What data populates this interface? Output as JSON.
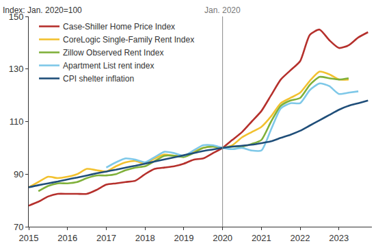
{
  "chart_data": {
    "type": "line",
    "y_label": "Index: Jan. 2020=100",
    "annotations": [
      {
        "text": "Jan. 2020",
        "x": 2020
      }
    ],
    "x": [
      2015,
      2015.25,
      2015.5,
      2015.75,
      2016,
      2016.25,
      2016.5,
      2016.75,
      2017,
      2017.25,
      2017.5,
      2017.75,
      2018,
      2018.25,
      2018.5,
      2018.75,
      2019,
      2019.25,
      2019.5,
      2019.75,
      2020,
      2020.25,
      2020.5,
      2020.75,
      2021,
      2021.25,
      2021.5,
      2021.75,
      2022,
      2022.25,
      2022.5,
      2022.75,
      2023,
      2023.25,
      2023.5,
      2023.75
    ],
    "series": [
      {
        "name": "Case-Shiller Home Price Index",
        "color": "#b5302c",
        "values": [
          78,
          79.5,
          81.5,
          82.5,
          82.5,
          82.5,
          82.5,
          84,
          86,
          86.5,
          87,
          87.5,
          90,
          92,
          92.5,
          93,
          94,
          95.5,
          96,
          98,
          100,
          103,
          106,
          110,
          114,
          120,
          126,
          129.5,
          133,
          143,
          145,
          141,
          138,
          139,
          142,
          144
        ]
      },
      {
        "name": "CoreLogic Single-Family Rent Index",
        "color": "#f2c12e",
        "values": [
          85,
          87,
          89,
          88.5,
          89,
          90,
          92,
          91.5,
          91,
          93,
          94.5,
          95,
          94,
          96,
          97.5,
          97,
          97,
          98.5,
          100,
          100.5,
          100,
          101,
          104,
          106,
          108,
          112,
          117,
          119,
          121,
          125.5,
          129,
          128,
          126,
          126,
          null,
          null
        ]
      },
      {
        "name": "Zillow Observed Rent Index",
        "color": "#7fb03a",
        "values": [
          null,
          83.5,
          85.5,
          86.5,
          86.5,
          87,
          88.5,
          89.5,
          89.5,
          90,
          91.5,
          92.5,
          93,
          95,
          97,
          97,
          96.5,
          98,
          100,
          100.5,
          100,
          100.5,
          100.5,
          101.5,
          103,
          110,
          116,
          118,
          119,
          124,
          127,
          126.5,
          126,
          126.5,
          null,
          null
        ]
      },
      {
        "name": "Apartment List rent index",
        "color": "#7ec8e8",
        "values": [
          null,
          null,
          null,
          null,
          null,
          null,
          null,
          null,
          92.5,
          94.5,
          96,
          95.5,
          94.5,
          96.5,
          98.5,
          98,
          97,
          99,
          101,
          101,
          100,
          99.5,
          100,
          99,
          99,
          107,
          115,
          117,
          117,
          122,
          124.5,
          123.5,
          120.5,
          121,
          121.5,
          null
        ]
      },
      {
        "name": "CPI shelter inflation",
        "color": "#1f4e79",
        "values": [
          85,
          85.8,
          86.5,
          87.2,
          88,
          88.7,
          89.5,
          90.3,
          91,
          91.7,
          92.5,
          93.2,
          94,
          94.8,
          95.6,
          96.4,
          97.2,
          98,
          98.8,
          99.4,
          100,
          100.5,
          100.8,
          101.2,
          101.8,
          102.5,
          103.8,
          105,
          106.5,
          108.5,
          110.5,
          112.5,
          114.5,
          116,
          117,
          118
        ]
      }
    ],
    "xlim": [
      2015,
      2023.85
    ],
    "xticks": [
      2015,
      2016,
      2017,
      2018,
      2019,
      2020,
      2021,
      2022,
      2023
    ],
    "ylim": [
      70,
      150
    ],
    "yticks": [
      70,
      90,
      110,
      130,
      150
    ],
    "grid": false,
    "legend": "top-left"
  }
}
